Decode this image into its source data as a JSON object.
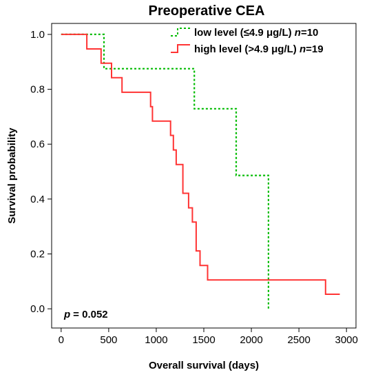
{
  "chart_data": {
    "type": "line",
    "subtype": "kaplan-meier-step",
    "title": "Preoperative CEA",
    "xlabel": "Overall survival (days)",
    "ylabel": "Survival probability",
    "xlim": [
      -100,
      3100
    ],
    "ylim": [
      -0.07,
      1.04
    ],
    "xticks": [
      0,
      500,
      1000,
      1500,
      2000,
      2500,
      3000
    ],
    "yticks": [
      0.0,
      0.2,
      0.4,
      0.6,
      0.8,
      1.0
    ],
    "xtick_labels": [
      "0",
      "500",
      "1000",
      "1500",
      "2000",
      "2500",
      "3000"
    ],
    "ytick_labels": [
      "0.0",
      "0.2",
      "0.4",
      "0.6",
      "0.8",
      "1.0"
    ],
    "grid": false,
    "legend_position": "top-right",
    "annotation": {
      "p_label": "p",
      "p_value": "= 0.052"
    },
    "series": [
      {
        "name": "low level (≤4.9 μg/L)",
        "n_label": "n",
        "n_value": "=10",
        "color": "#00bb00",
        "dash": "dotted",
        "x": [
          0,
          450,
          450,
          1400,
          1400,
          1840,
          1840,
          2180,
          2180
        ],
        "y": [
          1.0,
          1.0,
          0.875,
          0.875,
          0.729,
          0.729,
          0.486,
          0.486,
          0.0
        ]
      },
      {
        "name": "high level (>4.9 μg/L)",
        "n_label": "n",
        "n_value": "=19",
        "color": "#ff3333",
        "dash": "solid",
        "x": [
          0,
          270,
          270,
          420,
          420,
          530,
          530,
          640,
          640,
          940,
          940,
          960,
          960,
          1150,
          1150,
          1180,
          1180,
          1210,
          1210,
          1280,
          1280,
          1340,
          1340,
          1380,
          1380,
          1420,
          1420,
          1460,
          1460,
          1540,
          1540,
          2780,
          2780,
          2930
        ],
        "y": [
          1.0,
          1.0,
          0.947,
          0.947,
          0.895,
          0.895,
          0.842,
          0.842,
          0.789,
          0.789,
          0.737,
          0.737,
          0.684,
          0.684,
          0.632,
          0.632,
          0.579,
          0.579,
          0.526,
          0.526,
          0.421,
          0.421,
          0.368,
          0.368,
          0.316,
          0.316,
          0.211,
          0.211,
          0.158,
          0.158,
          0.105,
          0.105,
          0.053,
          0.053
        ]
      }
    ]
  }
}
